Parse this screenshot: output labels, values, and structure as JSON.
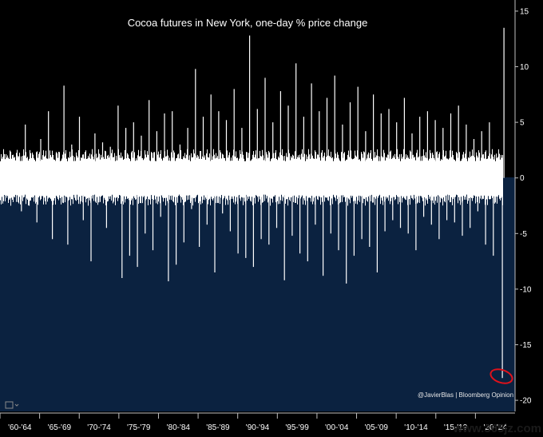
{
  "chart_data": {
    "type": "bar",
    "title": "Cocoa futures in New York, one-day % price change",
    "xlabel": "",
    "ylabel": "",
    "ylim": [
      -21,
      16
    ],
    "y_ticks": [
      15,
      10,
      5,
      0,
      -5,
      -10,
      -15,
      -20
    ],
    "x_tick_labels": [
      "'60-'64",
      "'65-'69",
      "'70-'74",
      "'75-'79",
      "'80-'84",
      "'85-'89",
      "'90-'94",
      "'95-'99",
      "'00-'04",
      "'05-'09",
      "'10-'14",
      "'15-'19",
      "'20-'24"
    ],
    "series": [
      {
        "values": [
          0.5,
          -0.8,
          1.2,
          -1.5,
          2.0,
          -3.0,
          4.8,
          -2.5,
          1.0,
          -4.0,
          3.5,
          -1.2,
          6.0,
          -5.5,
          2.2,
          -1.8,
          8.3,
          -6.0,
          3.0,
          -2.0,
          5.5,
          -3.8,
          1.5,
          -7.5,
          4.0,
          -2.2,
          3.2,
          -4.5,
          2.8,
          -1.0,
          6.5,
          -9.0,
          4.5,
          -7.0,
          5.0,
          -8.0,
          3.8,
          -5.0,
          7.0,
          -6.5,
          4.2,
          -3.5,
          5.8,
          -9.3,
          6.0,
          -7.8,
          3.0,
          -5.8,
          4.5,
          -2.8,
          9.8,
          -6.2,
          5.5,
          -4.2,
          7.5,
          -8.5,
          6.0,
          -3.2,
          5.2,
          -4.8,
          8.0,
          -6.8,
          4.5,
          -7.2,
          12.8,
          -8.0,
          6.2,
          -5.5,
          9.0,
          -6.0,
          5.0,
          -4.5,
          7.8,
          -9.2,
          6.5,
          -5.2,
          10.3,
          -6.8,
          5.5,
          -7.5,
          8.5,
          -4.2,
          6.0,
          -8.8,
          7.2,
          -5.0,
          9.2,
          -6.5,
          4.8,
          -9.5,
          6.8,
          -7.0,
          8.2,
          -5.5,
          4.2,
          -6.2,
          7.5,
          -8.5,
          5.8,
          -4.8,
          6.2,
          -3.8,
          5.0,
          -4.5,
          7.2,
          -5.0,
          4.0,
          -6.5,
          5.5,
          -3.5,
          6.0,
          -4.2,
          5.2,
          -5.5,
          4.5,
          -3.8,
          5.8,
          -4.0,
          6.5,
          -5.2,
          4.8,
          -4.5,
          3.5,
          -3.0,
          4.2,
          -6.0,
          5.0,
          -7.0,
          13.5,
          -18.0
        ]
      }
    ],
    "grid": false,
    "colors": {
      "above_background": "#000000",
      "below_background": "#0b2240",
      "bars": "#ffffff",
      "annotation_circle": "#e0121b"
    }
  },
  "credit": "@JavierBlas | Bloomberg Opinion",
  "watermark": "www.365jz.com"
}
